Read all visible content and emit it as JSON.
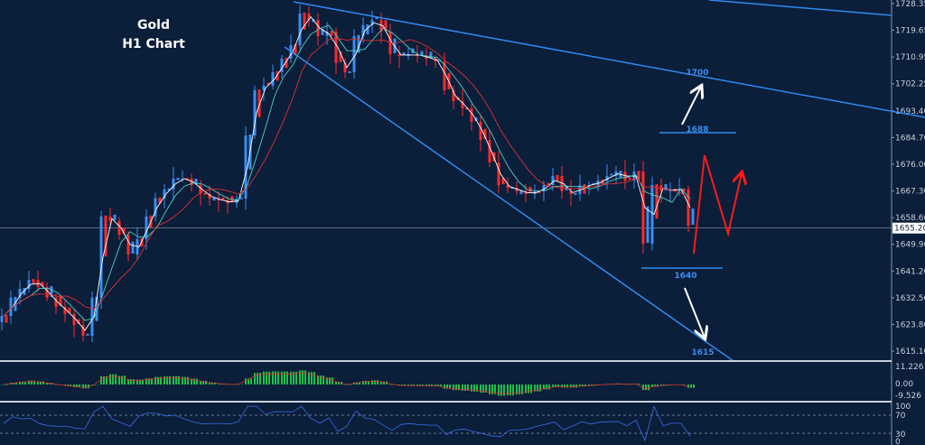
{
  "title_line1": "Gold",
  "title_line2": "H1 Chart",
  "colors": {
    "background": "#0b1e3a",
    "bull": "#3a8ef0",
    "bear": "#ff2a2a",
    "trendline": "#2e8bf0",
    "level_label": "#3a8ef0",
    "forecast": "#ff1a1a",
    "arrow": "#ffffff"
  },
  "chart_data": {
    "type": "candlestick",
    "symbol": "Gold",
    "timeframe": "H1",
    "ylim": [
      1612,
      1730
    ],
    "y_ticks": [
      "1728.35",
      "1719.65",
      "1710.95",
      "1702.25",
      "1693.40",
      "1684.70",
      "1676.00",
      "1667.30",
      "1658.60",
      "1649.90",
      "1641.20",
      "1632.50",
      "1623.80",
      "1615.10"
    ],
    "y_tick_values": [
      1728.35,
      1719.65,
      1710.95,
      1702.25,
      1693.4,
      1684.7,
      1676.0,
      1667.3,
      1658.6,
      1649.9,
      1641.2,
      1632.5,
      1623.8,
      1615.1
    ],
    "current_price": "1655.20",
    "current_price_value": 1655.2,
    "closes": [
      1626.6,
      1632.5,
      1635.4,
      1638.3,
      1636.0,
      1632.5,
      1629.5,
      1627.2,
      1623.6,
      1620.1,
      1632.5,
      1659.0,
      1657.5,
      1653.0,
      1646.6,
      1651.6,
      1659.0,
      1664.9,
      1667.8,
      1671.3,
      1671.3,
      1669.2,
      1666.3,
      1664.8,
      1664.2,
      1663.3,
      1664.8,
      1685.4,
      1700.1,
      1701.6,
      1706.0,
      1710.4,
      1714.8,
      1725.1,
      1723.0,
      1717.8,
      1719.2,
      1709.0,
      1706.0,
      1717.8,
      1721.3,
      1723.0,
      1719.2,
      1711.9,
      1711.3,
      1711.9,
      1711.3,
      1710.4,
      1709.5,
      1700.1,
      1696.6,
      1694.2,
      1689.8,
      1683.9,
      1676.6,
      1669.2,
      1668.3,
      1667.2,
      1666.3,
      1667.2,
      1669.2,
      1672.2,
      1667.2,
      1666.3,
      1669.2,
      1669.2,
      1670.7,
      1672.2,
      1673.6,
      1670.7,
      1673.6,
      1650.1,
      1669.2,
      1667.2,
      1667.8,
      1667.8,
      1656.0
    ],
    "levels": [
      {
        "label": "1700",
        "value": 1700
      },
      {
        "label": "1688",
        "value": 1688
      },
      {
        "label": "1640",
        "value": 1640
      },
      {
        "label": "1615",
        "value": 1615
      }
    ],
    "macd_ticks": [
      "11.226",
      "0.00",
      "-9.526"
    ],
    "rsi_ticks": [
      "100",
      "70",
      "30",
      "0"
    ]
  }
}
